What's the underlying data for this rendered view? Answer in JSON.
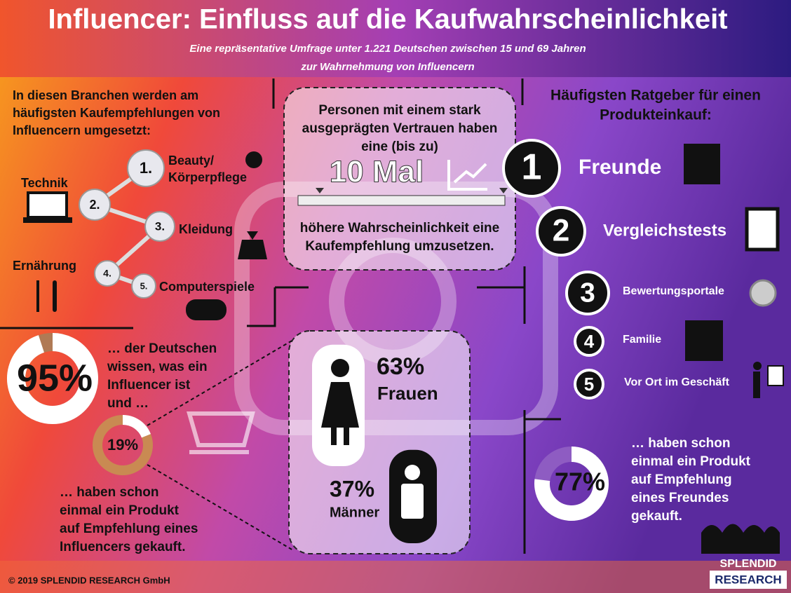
{
  "header": {
    "title": "Influencer: Einfluss auf die Kaufwahrscheinlichkeit",
    "subtitle": [
      "Eine repräsentative Umfrage unter 1.221 Deutschen zwischen 15 und 69 Jahren",
      "zur Wahrnehmung von Influencern"
    ]
  },
  "branches": {
    "heading": [
      "In diesen Branchen werden am",
      "häufigsten Kaufempfehlungen von",
      "Influencern umgesetzt:"
    ],
    "items": [
      {
        "rank": "1.",
        "label": [
          "Beauty/",
          "Körperpflege"
        ]
      },
      {
        "rank": "2.",
        "label": [
          "Technik"
        ]
      },
      {
        "rank": "3.",
        "label": [
          "Kleidung"
        ]
      },
      {
        "rank": "4.",
        "label": [
          "Ernährung"
        ]
      },
      {
        "rank": "5.",
        "label": [
          "Computerspiele"
        ]
      }
    ]
  },
  "awareness": {
    "percent": {
      "value": 95,
      "label": "95%"
    },
    "text": [
      "… der Deutschen",
      "wissen, was ein",
      "Influencer ist",
      "und …"
    ]
  },
  "influencer_purchase": {
    "percent": {
      "value": 19,
      "label": "19%"
    },
    "text": [
      "… haben schon",
      "einmal ein Produkt",
      "auf Empfehlung eines",
      "Influencers gekauft."
    ]
  },
  "trust": {
    "top": [
      "Personen mit einem stark",
      "ausgeprägten Vertrauen haben",
      "eine (bis zu)"
    ],
    "highlight": "10 Mal",
    "bottom": [
      "höhere Wahrscheinlichkeit eine",
      "Kaufempfehlung umzusetzen."
    ]
  },
  "gender": [
    {
      "percent": {
        "value": 63,
        "label": "63%"
      },
      "label": "Frauen"
    },
    {
      "percent": {
        "value": 37,
        "label": "37%"
      },
      "label": "Männer"
    }
  ],
  "advisors": {
    "heading": [
      "Häufigsten Ratgeber für einen",
      "Produkteinkauf:"
    ],
    "items": [
      {
        "rank": "1",
        "label": "Freunde"
      },
      {
        "rank": "2",
        "label": "Vergleichstests"
      },
      {
        "rank": "3",
        "label": "Bewertungsportale"
      },
      {
        "rank": "4",
        "label": "Familie"
      },
      {
        "rank": "5",
        "label": "Vor Ort im Geschäft"
      }
    ]
  },
  "friend_purchase": {
    "percent": {
      "value": 77,
      "label": "77%"
    },
    "text": [
      "… haben schon",
      "einmal ein Produkt",
      "auf Empfehlung",
      "eines Freundes",
      "gekauft."
    ]
  },
  "footer": {
    "copyright": "© 2019 SPLENDID RESEARCH GmbH",
    "logo": [
      "SPLENDID",
      "RESEARCH"
    ]
  }
}
